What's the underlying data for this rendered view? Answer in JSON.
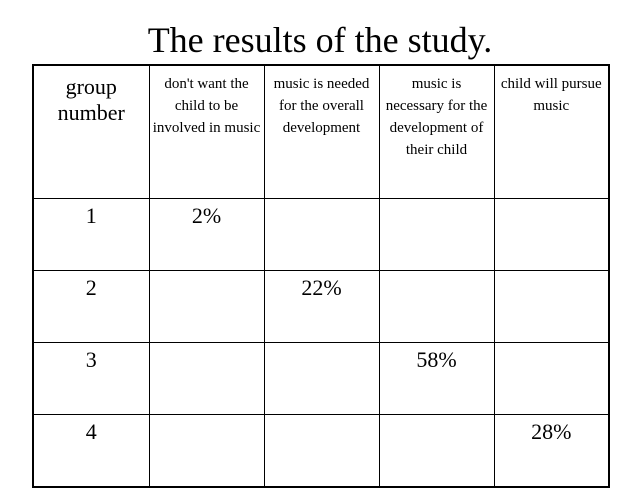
{
  "title": "The results of the study.",
  "table": {
    "headers": [
      "group number",
      "don't want the child to be involved in music",
      "music is needed for the overall development",
      "music is necessary for the development of their child",
      "child will pursue music"
    ],
    "rows": [
      [
        "1",
        "2%",
        "",
        "",
        ""
      ],
      [
        "2",
        "",
        "22%",
        "",
        ""
      ],
      [
        "3",
        "",
        "",
        "58%",
        ""
      ],
      [
        "4",
        "",
        "",
        "",
        "28%"
      ]
    ]
  }
}
